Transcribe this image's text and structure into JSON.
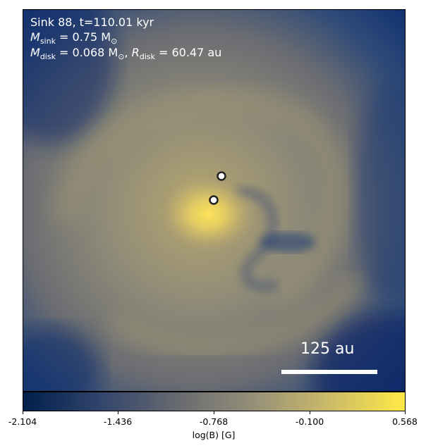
{
  "panel": {
    "title": "Sink 88, t=110.01 kyr",
    "mass_sink": {
      "symbol": "M",
      "subscript": "sink",
      "value": "= 0.75 M",
      "sun": "⊙"
    },
    "mass_disk": {
      "symbol": "M",
      "subscript": "disk",
      "value": "= 0.068 M",
      "sun": "⊙"
    },
    "radius_disk": {
      "symbol": "R",
      "subscript": "disk",
      "value": "= 60.47 au"
    },
    "scale_bar_label": "125 au",
    "sinks": [
      {
        "name": "sink-primary"
      },
      {
        "name": "sink-secondary"
      }
    ]
  },
  "colorbar": {
    "label": "log(B) [G]",
    "ticks": [
      "-2.104",
      "-1.436",
      "-0.768",
      "-0.100",
      "0.568"
    ],
    "colormap": "cividis",
    "colors": [
      "#00204c",
      "#31446b",
      "#666970",
      "#958f78",
      "#cbba69",
      "#ffe945"
    ]
  }
}
